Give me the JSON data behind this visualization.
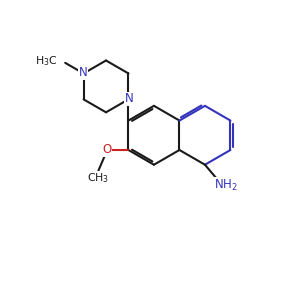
{
  "bg": "#ffffff",
  "bc": "#1a1a1a",
  "nc": "#3333bb",
  "oc": "#cc2222",
  "lw": 1.5,
  "dg": 0.07,
  "figsize": [
    3.0,
    3.0
  ],
  "dpi": 100,
  "xlim": [
    0.5,
    10.5
  ],
  "ylim": [
    1.0,
    10.0
  ]
}
